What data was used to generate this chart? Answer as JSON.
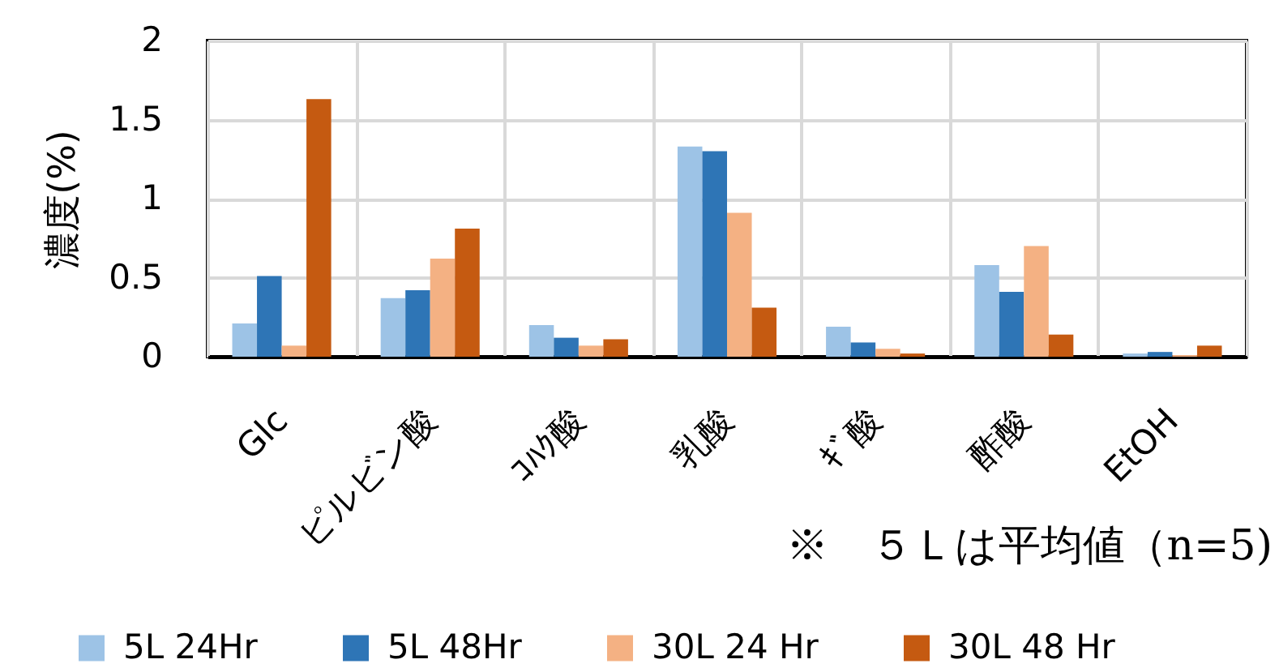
{
  "chart_data": {
    "type": "bar",
    "ylabel": "濃度(%)",
    "annotations": [
      "※　５Ｌは平均値（n=5)"
    ],
    "categories": [
      "Glc",
      "ピルビン酸",
      "ｺﾊｸ酸",
      "乳酸",
      "ｷﾞ酸",
      "酢酸",
      "EtOH"
    ],
    "series": [
      {
        "name": "5L 24Hr",
        "color": "#9dc3e6",
        "values": [
          0.21,
          0.37,
          0.2,
          1.33,
          0.19,
          0.58,
          0.02
        ]
      },
      {
        "name": "5L 48Hr",
        "color": "#2e75b6",
        "values": [
          0.51,
          0.42,
          0.12,
          1.3,
          0.09,
          0.41,
          0.03
        ]
      },
      {
        "name": "30L 24 Hr",
        "color": "#f4b183",
        "values": [
          0.07,
          0.62,
          0.07,
          0.91,
          0.05,
          0.7,
          0.01
        ]
      },
      {
        "name": "30L 48 Hr",
        "color": "#c55a11",
        "values": [
          1.63,
          0.81,
          0.11,
          0.31,
          0.02,
          0.14,
          0.07
        ]
      }
    ],
    "ylim": [
      0,
      2
    ],
    "yticks": [
      0,
      0.5,
      1,
      1.5,
      2
    ],
    "grid": true,
    "legend": "bottom"
  }
}
